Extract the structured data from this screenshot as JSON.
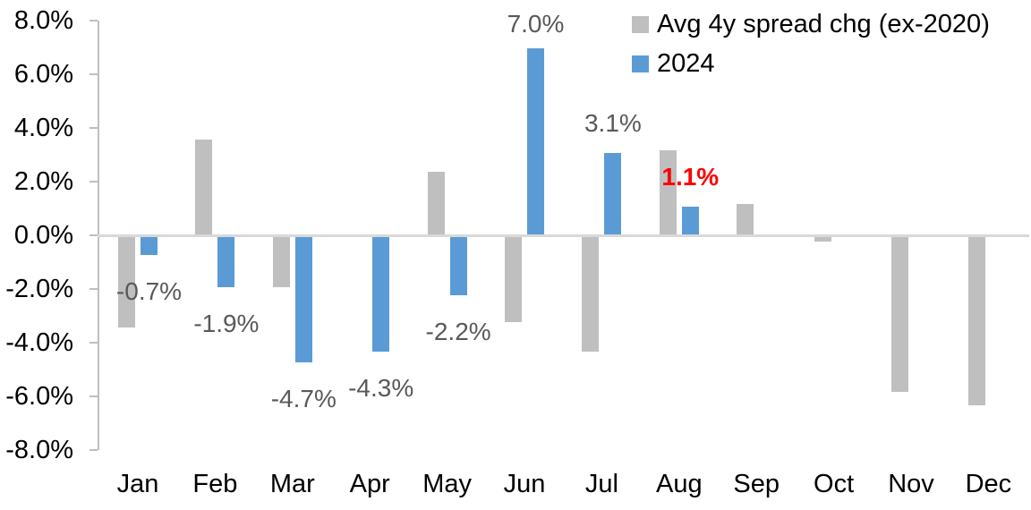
{
  "chart_data": {
    "type": "bar",
    "title": "",
    "categories": [
      "Jan",
      "Feb",
      "Mar",
      "Apr",
      "May",
      "Jun",
      "Jul",
      "Aug",
      "Sep",
      "Oct",
      "Nov",
      "Dec"
    ],
    "y_axis": {
      "tick_labels": [
        "8.0%",
        "6.0%",
        "4.0%",
        "2.0%",
        "0.0%",
        "-2.0%",
        "-4.0%",
        "-6.0%",
        "-8.0%"
      ],
      "min": -8,
      "max": 8,
      "step": 2,
      "unit": "%"
    },
    "grid": "zero-line-only",
    "legend_position": "top-right",
    "series": [
      {
        "name": "Avg 4y spread chg (ex-2020)",
        "color": "#BFBFBF",
        "values": [
          -3.4,
          3.6,
          -1.9,
          0,
          2.4,
          -3.2,
          -4.3,
          3.2,
          1.2,
          -0.2,
          -5.8,
          -6.3
        ]
      },
      {
        "name": "2024",
        "color": "#5B9BD5",
        "values": [
          -0.7,
          -1.9,
          -4.7,
          -4.3,
          -2.2,
          7.0,
          3.1,
          1.1,
          null,
          null,
          null,
          null
        ],
        "data_labels": [
          {
            "index": 0,
            "text": "-0.7%"
          },
          {
            "index": 1,
            "text": "-1.9%"
          },
          {
            "index": 2,
            "text": "-4.7%"
          },
          {
            "index": 3,
            "text": "-4.3%"
          },
          {
            "index": 4,
            "text": "-2.2%"
          },
          {
            "index": 5,
            "text": "7.0%"
          },
          {
            "index": 6,
            "text": "3.1%"
          },
          {
            "index": 7,
            "text": "1.1%",
            "emphasis": true,
            "emphasis_color": "#FF0000"
          }
        ]
      }
    ],
    "colors": {
      "data_label": "#595959",
      "axis_line": "#BFBFBF",
      "zero_line": "#D9D9D9",
      "text": "#000000",
      "background": "#FFFFFF"
    }
  }
}
